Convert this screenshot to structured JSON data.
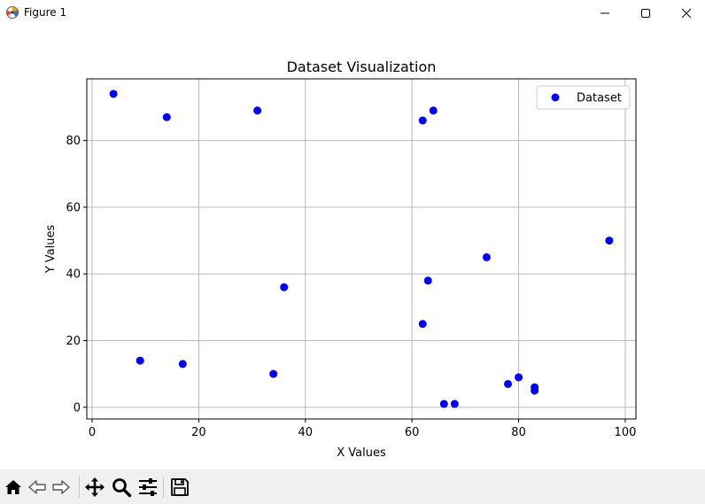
{
  "window": {
    "title": "Figure 1",
    "icons": {
      "app": "matplotlib-icon",
      "minimize": "minimize-icon",
      "maximize": "maximize-icon",
      "close": "close-icon"
    }
  },
  "toolbar": {
    "buttons": [
      {
        "name": "home",
        "icon": "home-icon"
      },
      {
        "name": "back",
        "icon": "back-arrow-icon"
      },
      {
        "name": "forward",
        "icon": "forward-arrow-icon"
      },
      {
        "name": "pan",
        "icon": "move-icon"
      },
      {
        "name": "zoom",
        "icon": "zoom-icon"
      },
      {
        "name": "configure-subplots",
        "icon": "sliders-icon"
      },
      {
        "name": "save",
        "icon": "save-icon"
      }
    ]
  },
  "chart_data": {
    "type": "scatter",
    "title": "Dataset Visualization",
    "xlabel": "X Values",
    "ylabel": "Y Values",
    "xlim": [
      -1,
      102
    ],
    "ylim": [
      -3.5,
      98.5
    ],
    "xticks": [
      0,
      20,
      40,
      60,
      80,
      100
    ],
    "yticks": [
      0,
      20,
      40,
      60,
      80
    ],
    "grid": true,
    "legend_position": "upper right",
    "series": [
      {
        "name": "Dataset",
        "color": "#0000ff",
        "points": [
          {
            "x": 4,
            "y": 94
          },
          {
            "x": 14,
            "y": 87
          },
          {
            "x": 31,
            "y": 89
          },
          {
            "x": 62,
            "y": 86
          },
          {
            "x": 64,
            "y": 89
          },
          {
            "x": 97,
            "y": 50
          },
          {
            "x": 74,
            "y": 45
          },
          {
            "x": 63,
            "y": 38
          },
          {
            "x": 36,
            "y": 36
          },
          {
            "x": 62,
            "y": 25
          },
          {
            "x": 9,
            "y": 14
          },
          {
            "x": 17,
            "y": 13
          },
          {
            "x": 34,
            "y": 10
          },
          {
            "x": 80,
            "y": 9
          },
          {
            "x": 78,
            "y": 7
          },
          {
            "x": 83,
            "y": 6
          },
          {
            "x": 83,
            "y": 5
          },
          {
            "x": 66,
            "y": 1
          },
          {
            "x": 68,
            "y": 1
          }
        ]
      }
    ]
  }
}
